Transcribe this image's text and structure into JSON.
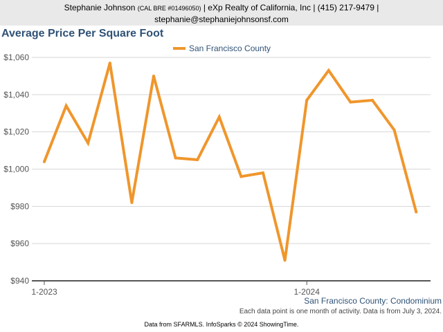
{
  "header": {
    "agent_name": "Stephanie Johnson",
    "license": "(CAL BRE #01496050)",
    "line1_rest": "| eXp Realty of California, Inc | (415) 217-9479 |",
    "email": "stephanie@stephaniejohnsonsf.com"
  },
  "footnote": {
    "region_type": "San Francisco County: Condominium",
    "activity_note": "Each data point is one month of activity. Data is from July 3, 2024.",
    "source": "Data from SFARMLS. InfoSparks © 2024 ShowingTime."
  },
  "chart_data": {
    "type": "line",
    "title": "Average Price Per Square Foot",
    "xlabel": "",
    "ylabel": "",
    "ylim": [
      940,
      1060
    ],
    "yticks": [
      940,
      960,
      980,
      1000,
      1020,
      1040,
      1060
    ],
    "ytick_labels": [
      "$940",
      "$960",
      "$980",
      "$1,000",
      "$1,020",
      "$1,040",
      "$1,060"
    ],
    "x_tick_labels": [
      {
        "index": 0,
        "label": "1-2023"
      },
      {
        "index": 12,
        "label": "1-2024"
      }
    ],
    "x": [
      "1-2023",
      "2-2023",
      "3-2023",
      "4-2023",
      "5-2023",
      "6-2023",
      "7-2023",
      "8-2023",
      "9-2023",
      "10-2023",
      "11-2023",
      "12-2023",
      "1-2024",
      "2-2024",
      "3-2024",
      "4-2024",
      "5-2024",
      "6-2024"
    ],
    "grid": true,
    "legend": "top-center",
    "series": [
      {
        "name": "San Francisco County",
        "color": "#f0962c",
        "values": [
          1004,
          1034,
          1014,
          1057,
          982,
          1050,
          1006,
          1005,
          1028,
          996,
          998,
          951,
          1037,
          1053,
          1036,
          1037,
          1021,
          977
        ]
      }
    ]
  }
}
